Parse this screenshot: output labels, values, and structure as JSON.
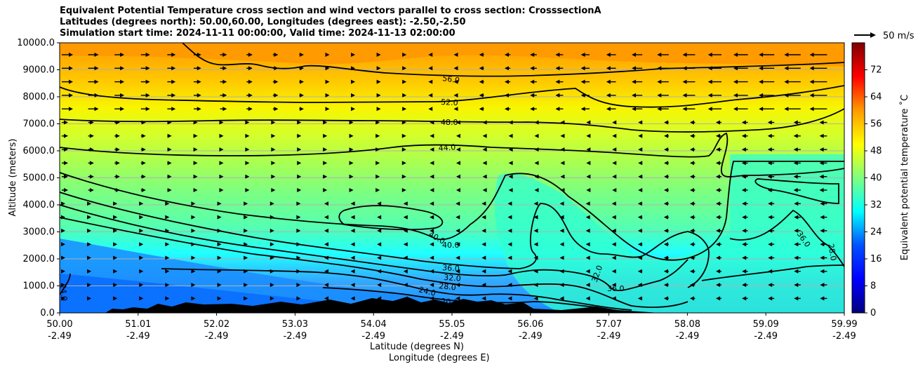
{
  "chart_data": {
    "type": "heatmap",
    "title_lines": [
      "Equivalent Potential Temperature cross section and wind vectors parallel to cross section: CrosssectionA",
      "Latitudes (degrees north): 50.00,60.00, Longitudes (degrees east): -2.50,-2.50",
      "Simulation start time: 2024-11-11 00:00:00, Valid time: 2024-11-13 02:00:00"
    ],
    "xlabel": "Latitude (degrees N)",
    "xlabel2": "Longitude (degrees E)",
    "ylabel": "Altitude (meters)",
    "x_ticks_lat": [
      "50.00",
      "51.01",
      "52.02",
      "53.03",
      "54.04",
      "55.05",
      "56.06",
      "57.07",
      "58.08",
      "59.09",
      "59.99"
    ],
    "x_ticks_lon": [
      "-2.49",
      "-2.49",
      "-2.49",
      "-2.49",
      "-2.49",
      "-2.49",
      "-2.49",
      "-2.49",
      "-2.49",
      "-2.49",
      "-2.49"
    ],
    "y_ticks": [
      "0.0",
      "1000.0",
      "2000.0",
      "3000.0",
      "4000.0",
      "5000.0",
      "6000.0",
      "7000.0",
      "8000.0",
      "9000.0",
      "10000.0"
    ],
    "ylim": [
      0,
      10000
    ],
    "xlim": [
      50.0,
      59.99
    ],
    "colorbar": {
      "label": "Equivalent potential temperature $^\\circ$C",
      "label_text": "Equivalent potential temperature ˚C",
      "range": [
        0,
        80
      ],
      "ticks": [
        "0",
        "8",
        "16",
        "24",
        "32",
        "40",
        "48",
        "56",
        "64",
        "72"
      ]
    },
    "wind_key": "50 m/s",
    "contour_labels": [
      "56.0",
      "52.0",
      "48.0",
      "44.0",
      "40.0",
      "36.0",
      "32.0",
      "28.0",
      "24.0",
      "20.0"
    ]
  },
  "colors": {
    "cmap": [
      "#00007f",
      "#0000ff",
      "#007fff",
      "#00ffff",
      "#7fff7f",
      "#ffff00",
      "#ff7f00",
      "#ff0000",
      "#7f0000"
    ]
  }
}
